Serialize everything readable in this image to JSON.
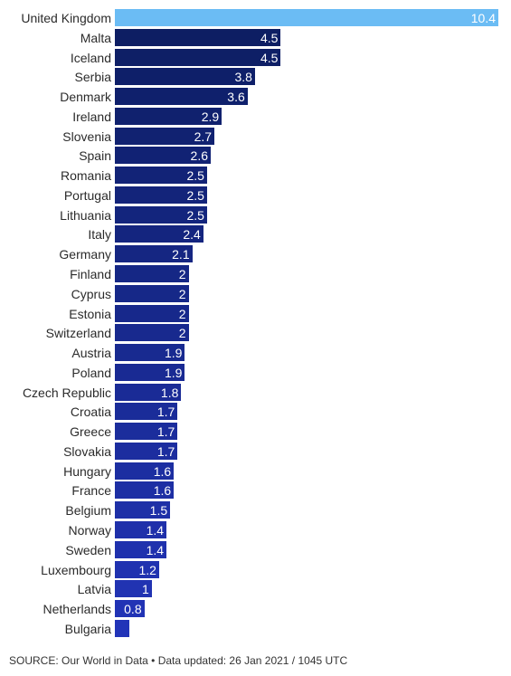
{
  "chart_data": {
    "type": "bar",
    "orientation": "horizontal",
    "title": "",
    "xlabel": "",
    "ylabel": "",
    "categories": [
      "United Kingdom",
      "Malta",
      "Iceland",
      "Serbia",
      "Denmark",
      "Ireland",
      "Slovenia",
      "Spain",
      "Romania",
      "Portugal",
      "Lithuania",
      "Italy",
      "Germany",
      "Finland",
      "Cyprus",
      "Estonia",
      "Switzerland",
      "Austria",
      "Poland",
      "Czech Republic",
      "Croatia",
      "Greece",
      "Slovakia",
      "Hungary",
      "France",
      "Belgium",
      "Norway",
      "Sweden",
      "Luxembourg",
      "Latvia",
      "Netherlands",
      "Bulgaria"
    ],
    "values": [
      10.4,
      4.5,
      4.5,
      3.8,
      3.6,
      2.9,
      2.7,
      2.6,
      2.5,
      2.5,
      2.5,
      2.4,
      2.1,
      2,
      2,
      2,
      2,
      1.9,
      1.9,
      1.8,
      1.7,
      1.7,
      1.7,
      1.6,
      1.6,
      1.5,
      1.4,
      1.4,
      1.2,
      1,
      0.8,
      0.4
    ],
    "value_labels": [
      "10.4",
      "4.5",
      "4.5",
      "3.8",
      "3.6",
      "2.9",
      "2.7",
      "2.6",
      "2.5",
      "2.5",
      "2.5",
      "2.4",
      "2.1",
      "2",
      "2",
      "2",
      "2",
      "1.9",
      "1.9",
      "1.8",
      "1.7",
      "1.7",
      "1.7",
      "1.6",
      "1.6",
      "1.5",
      "1.4",
      "1.4",
      "1.2",
      "1",
      "0.8",
      ""
    ],
    "xlim": [
      0,
      10.4
    ],
    "grid": false,
    "legend": "none",
    "colors": {
      "highlight": "#6bbcf4",
      "bar_top": "#0d1e63",
      "bar_bottom": "#2234b8",
      "value_text": "#ffffff",
      "label_text": "#2b2b2b"
    }
  },
  "footer": {
    "source": "SOURCE: Our World in Data • Data updated: 26 Jan 2021 / 1045 UTC"
  }
}
